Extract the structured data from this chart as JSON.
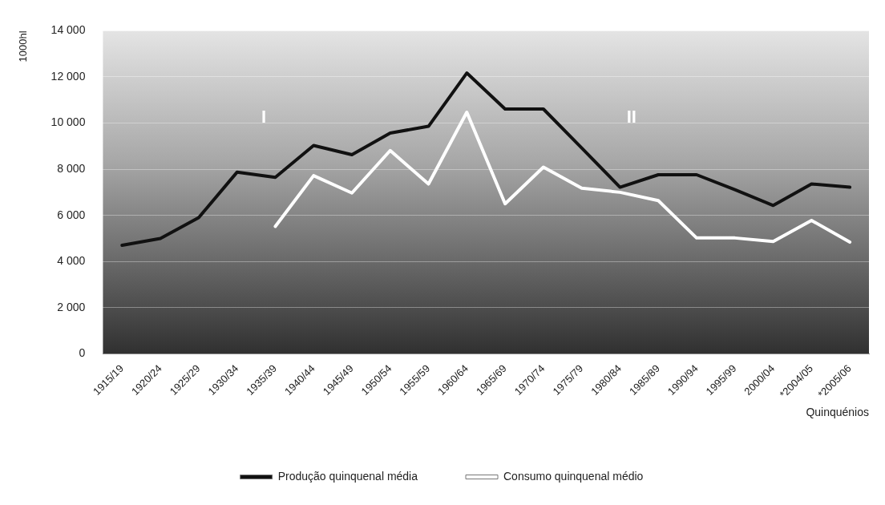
{
  "chart_data": {
    "type": "line",
    "xlabel": "Quinquénios",
    "ylabel": "1000hl",
    "categories": [
      "1915/19",
      "1920/24",
      "1925/29",
      "1930/34",
      "1935/39",
      "1940/44",
      "1945/49",
      "1950/54",
      "1955/59",
      "1960/64",
      "1965/69",
      "1970/74",
      "1975/79",
      "1980/84",
      "1985/89",
      "1990/94",
      "1995/99",
      "2000/04",
      "*2004/05",
      "*2005/06"
    ],
    "series": [
      {
        "name": "Produção quinquenal média",
        "color": "#111111",
        "values": [
          4700,
          5000,
          5900,
          7870,
          7650,
          9030,
          8630,
          9570,
          9860,
          12170,
          10610,
          10610,
          8920,
          7220,
          7760,
          7760,
          7110,
          6430,
          7360,
          7220
        ]
      },
      {
        "name": "Consumo quinquenal médio",
        "color": "#ffffff",
        "values": [
          null,
          null,
          null,
          null,
          5520,
          7720,
          6970,
          8810,
          7360,
          10470,
          6500,
          8090,
          7180,
          7000,
          6640,
          5020,
          5020,
          4870,
          5780,
          4840
        ]
      }
    ],
    "ylim": [
      0,
      14000
    ],
    "yticks": [
      {
        "value": 0,
        "label": "0"
      },
      {
        "value": 2000,
        "label": "2 000"
      },
      {
        "value": 4000,
        "label": "4 000"
      },
      {
        "value": 6000,
        "label": "6 000"
      },
      {
        "value": 8000,
        "label": "8 000"
      },
      {
        "value": 10000,
        "label": "10 000"
      },
      {
        "value": 12000,
        "label": "12 000"
      },
      {
        "value": 14000,
        "label": "14 000"
      }
    ],
    "grid": "y",
    "legend": "bottom",
    "marker": "none",
    "line_style": "solid",
    "annotations": [
      "I",
      "II"
    ]
  }
}
